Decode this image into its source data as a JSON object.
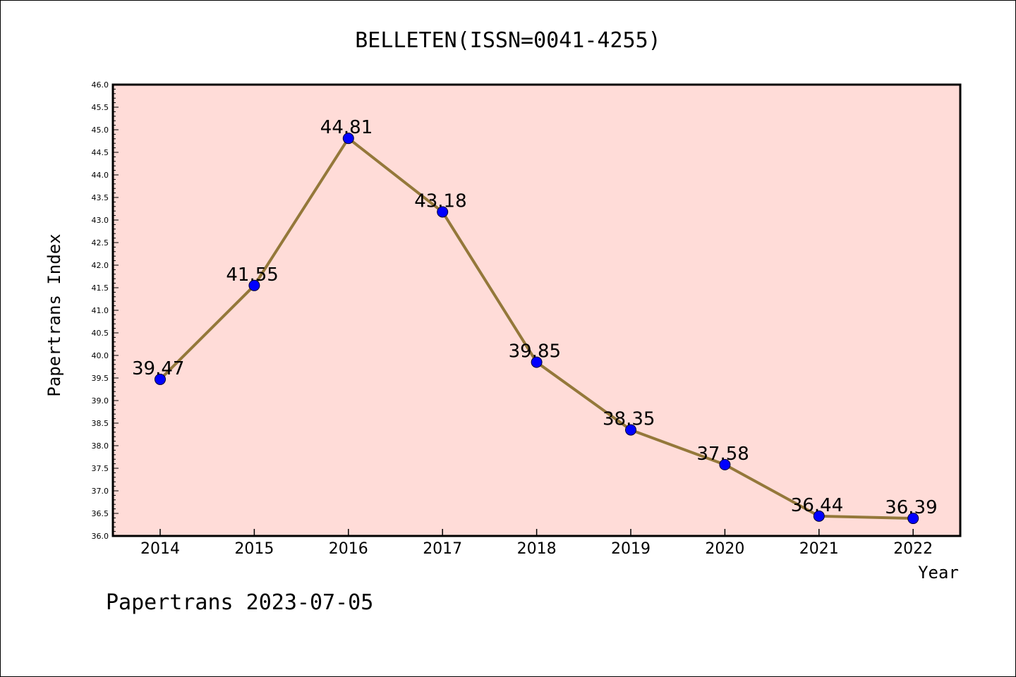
{
  "chart_data": {
    "type": "line",
    "title": "BELLETEN(ISSN=0041-4255)",
    "xlabel": "Year",
    "ylabel": "Papertrans Index",
    "footer": "Papertrans 2023-07-05",
    "categories": [
      "2014",
      "2015",
      "2016",
      "2017",
      "2018",
      "2019",
      "2020",
      "2021",
      "2022"
    ],
    "values": [
      39.47,
      41.55,
      44.81,
      43.18,
      39.85,
      38.35,
      37.58,
      36.44,
      36.39
    ],
    "data_labels": [
      "39.47",
      "41.55",
      "44.81",
      "43.18",
      "39.85",
      "38.35",
      "37.58",
      "36.44",
      "36.39"
    ],
    "ylim": [
      36.0,
      46.0
    ],
    "y_ticks": [
      "36.0",
      "36.5",
      "37.0",
      "37.5",
      "38.0",
      "38.5",
      "39.0",
      "39.5",
      "40.0",
      "40.5",
      "41.0",
      "41.5",
      "42.0",
      "42.5",
      "43.0",
      "43.5",
      "44.0",
      "44.5",
      "45.0",
      "45.5",
      "46.0"
    ],
    "grid": false,
    "colors": {
      "plot_background": "#ffdcd8",
      "line": "#94783a",
      "marker": "#0000ff",
      "axis": "#000000"
    }
  }
}
